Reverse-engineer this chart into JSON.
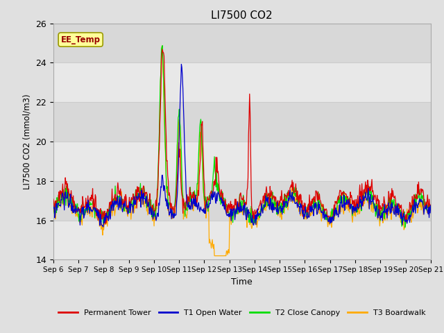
{
  "title": "LI7500 CO2",
  "ylabel": "LI7500 CO2 (mmol/m3)",
  "xlabel": "Time",
  "ylim": [
    14,
    26
  ],
  "bg_color": "#e0e0e0",
  "plot_bg_color": "#e8e8e8",
  "band_colors": [
    "#e8e8e8",
    "#d8d8d8"
  ],
  "annotation_text": "EE_Temp",
  "annotation_bg": "#ffff99",
  "annotation_fg": "#990000",
  "series_colors": {
    "Permanent Tower": "#dd0000",
    "T1 Open Water": "#0000cc",
    "T2 Close Canopy": "#00dd00",
    "T3 Boardwalk": "#ffaa00"
  },
  "xtick_labels": [
    "Sep 6",
    "Sep 7",
    "Sep 8",
    "Sep 9",
    "Sep 10",
    "Sep 11",
    "Sep 12",
    "Sep 13",
    "Sep 14",
    "Sep 15",
    "Sep 16",
    "Sep 17",
    "Sep 18",
    "Sep 19",
    "Sep 20",
    "Sep 21"
  ],
  "ytick_values": [
    14,
    16,
    18,
    20,
    22,
    24,
    26
  ],
  "grid_color": "#cccccc",
  "line_width": 0.9,
  "figsize": [
    6.4,
    4.8
  ],
  "dpi": 100
}
